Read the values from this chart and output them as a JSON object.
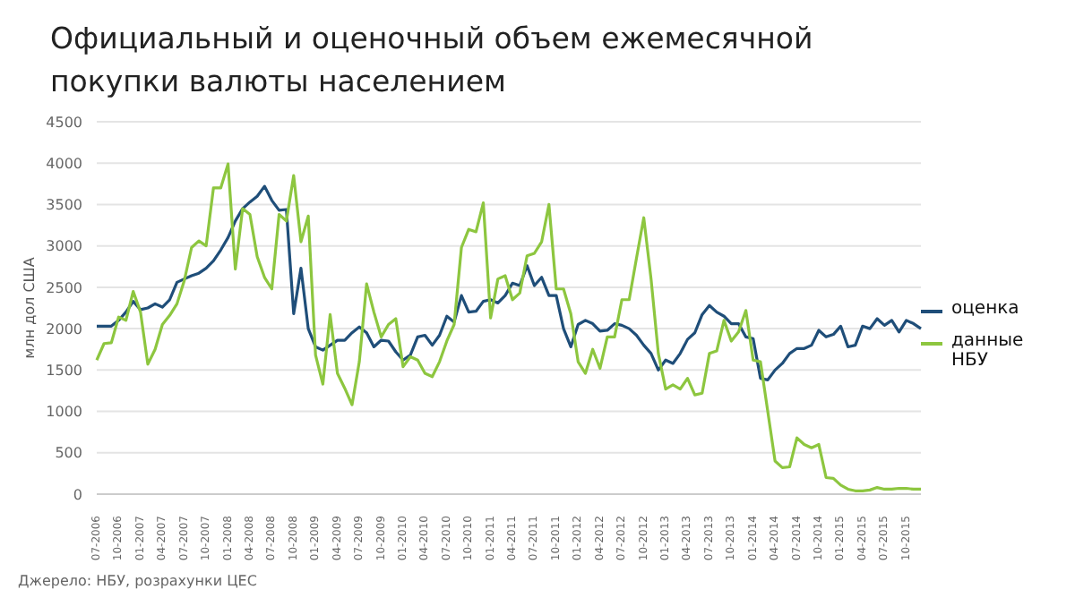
{
  "chart_data": {
    "type": "line",
    "title": "Официальный и оценочный объем ежемесячной покупки валюты населением",
    "ylabel": "млн дол США",
    "categories": [
      "07-2006",
      null,
      null,
      "10-2006",
      null,
      null,
      "01-2007",
      null,
      null,
      "04-2007",
      null,
      null,
      "07-2007",
      null,
      null,
      "10-2007",
      null,
      null,
      "01-2008",
      null,
      null,
      "04-2008",
      null,
      null,
      "07-2008",
      null,
      null,
      "10-2008",
      null,
      null,
      "01-2009",
      null,
      null,
      "04-2009",
      null,
      null,
      "07-2009",
      null,
      null,
      "10-2009",
      null,
      null,
      "01-2010",
      null,
      null,
      "04-2010",
      null,
      null,
      "07-2010",
      null,
      null,
      "10-2010",
      null,
      null,
      "01-2011",
      null,
      null,
      "04-2011",
      null,
      null,
      "07-2011",
      null,
      null,
      "10-2011",
      null,
      null,
      "01-2012",
      null,
      null,
      "04-2012",
      null,
      null,
      "07-2012",
      null,
      null,
      "10-2012",
      null,
      null,
      "01-2013",
      null,
      null,
      "04-2013",
      null,
      null,
      "07-2013",
      null,
      null,
      "10-2013",
      null,
      null,
      "01-2014",
      null,
      null,
      "04-2014",
      null,
      null,
      "07-2014",
      null,
      null,
      "10-2014",
      null,
      null,
      "01-2015",
      null,
      null,
      "04-2015",
      null,
      null,
      "07-2015",
      null,
      null,
      "10-2015",
      null,
      null
    ],
    "series": [
      {
        "name": "оценка",
        "color": "#1f4e79",
        "values": [
          2030,
          2030,
          2030,
          2100,
          2200,
          2330,
          2230,
          2250,
          2300,
          2260,
          2350,
          2560,
          2600,
          2640,
          2670,
          2730,
          2820,
          2950,
          3100,
          3300,
          3450,
          3530,
          3600,
          3720,
          3550,
          3430,
          3440,
          2180,
          2730,
          2000,
          1780,
          1740,
          1800,
          1860,
          1860,
          1950,
          2020,
          1950,
          1780,
          1860,
          1850,
          1720,
          1620,
          1680,
          1900,
          1920,
          1800,
          1920,
          2150,
          2080,
          2400,
          2200,
          2210,
          2330,
          2350,
          2310,
          2400,
          2550,
          2520,
          2760,
          2520,
          2620,
          2400,
          2400,
          2000,
          1780,
          2050,
          2100,
          2060,
          1970,
          1980,
          2060,
          2040,
          2000,
          1920,
          1800,
          1700,
          1500,
          1620,
          1580,
          1700,
          1870,
          1950,
          2170,
          2280,
          2200,
          2150,
          2060,
          2060,
          1900,
          1880,
          1400,
          1380,
          1500,
          1580,
          1700,
          1760,
          1760,
          1800,
          1980,
          1900,
          1930,
          2030,
          1780,
          1800,
          2030,
          2000,
          2120,
          2040,
          2100,
          1960,
          2100,
          2060,
          2000
        ]
      },
      {
        "name": "данные НБУ",
        "color": "#8dc63f",
        "values": [
          1620,
          1820,
          1830,
          2140,
          2100,
          2450,
          2200,
          1570,
          1750,
          2050,
          2160,
          2300,
          2580,
          2980,
          3060,
          3000,
          3700,
          3700,
          3990,
          2720,
          3450,
          3380,
          2870,
          2620,
          2480,
          3380,
          3300,
          3850,
          3050,
          3360,
          1680,
          1330,
          2170,
          1460,
          1280,
          1080,
          1600,
          2540,
          2200,
          1900,
          2050,
          2120,
          1540,
          1660,
          1620,
          1460,
          1420,
          1600,
          1850,
          2050,
          2980,
          3200,
          3170,
          3520,
          2130,
          2600,
          2640,
          2350,
          2430,
          2880,
          2910,
          3050,
          3500,
          2480,
          2480,
          2180,
          1600,
          1460,
          1750,
          1520,
          1900,
          1900,
          2350,
          2350,
          2850,
          3340,
          2600,
          1700,
          1270,
          1320,
          1270,
          1400,
          1200,
          1220,
          1700,
          1730,
          2100,
          1850,
          1960,
          2220,
          1620,
          1600,
          1000,
          400,
          320,
          330,
          680,
          600,
          560,
          600,
          200,
          190,
          110,
          60,
          40,
          40,
          50,
          80,
          60,
          60,
          70,
          70,
          60,
          60
        ]
      }
    ],
    "ylim": [
      0,
      4500
    ],
    "yticks": [
      0,
      500,
      1000,
      1500,
      2000,
      2500,
      3000,
      3500,
      4000,
      4500
    ],
    "grid": "y",
    "legend": "right",
    "marker": "none",
    "line_style": "solid",
    "annotations": [
      "Джерело: НБУ, розрахунки ЦЕС"
    ]
  }
}
